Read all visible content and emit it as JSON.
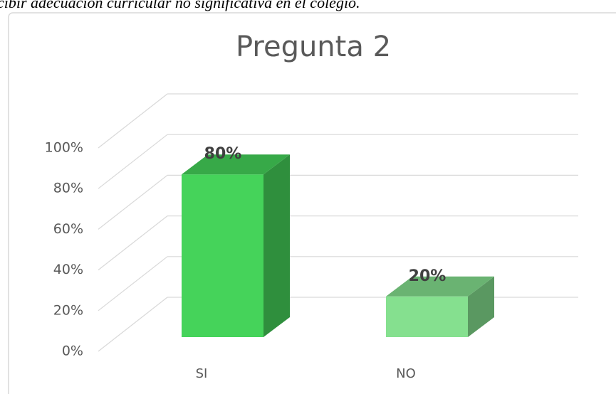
{
  "caption": "cibir adecuación curricular no significativa en el colegio.",
  "chart_data": {
    "type": "bar3d",
    "title": "Pregunta 2",
    "categories": [
      "SI",
      "NO"
    ],
    "values": [
      80,
      20
    ],
    "value_labels": [
      "80%",
      "20%"
    ],
    "colors": [
      "#45d35a",
      "#85e08f"
    ],
    "ylim": [
      0,
      100
    ],
    "yticks": [
      {
        "value": 0,
        "label": "0%"
      },
      {
        "value": 20,
        "label": "20%"
      },
      {
        "value": 40,
        "label": "40%"
      },
      {
        "value": 60,
        "label": "60%"
      },
      {
        "value": 80,
        "label": "80%"
      },
      {
        "value": 100,
        "label": "100%"
      }
    ],
    "grid": true
  }
}
